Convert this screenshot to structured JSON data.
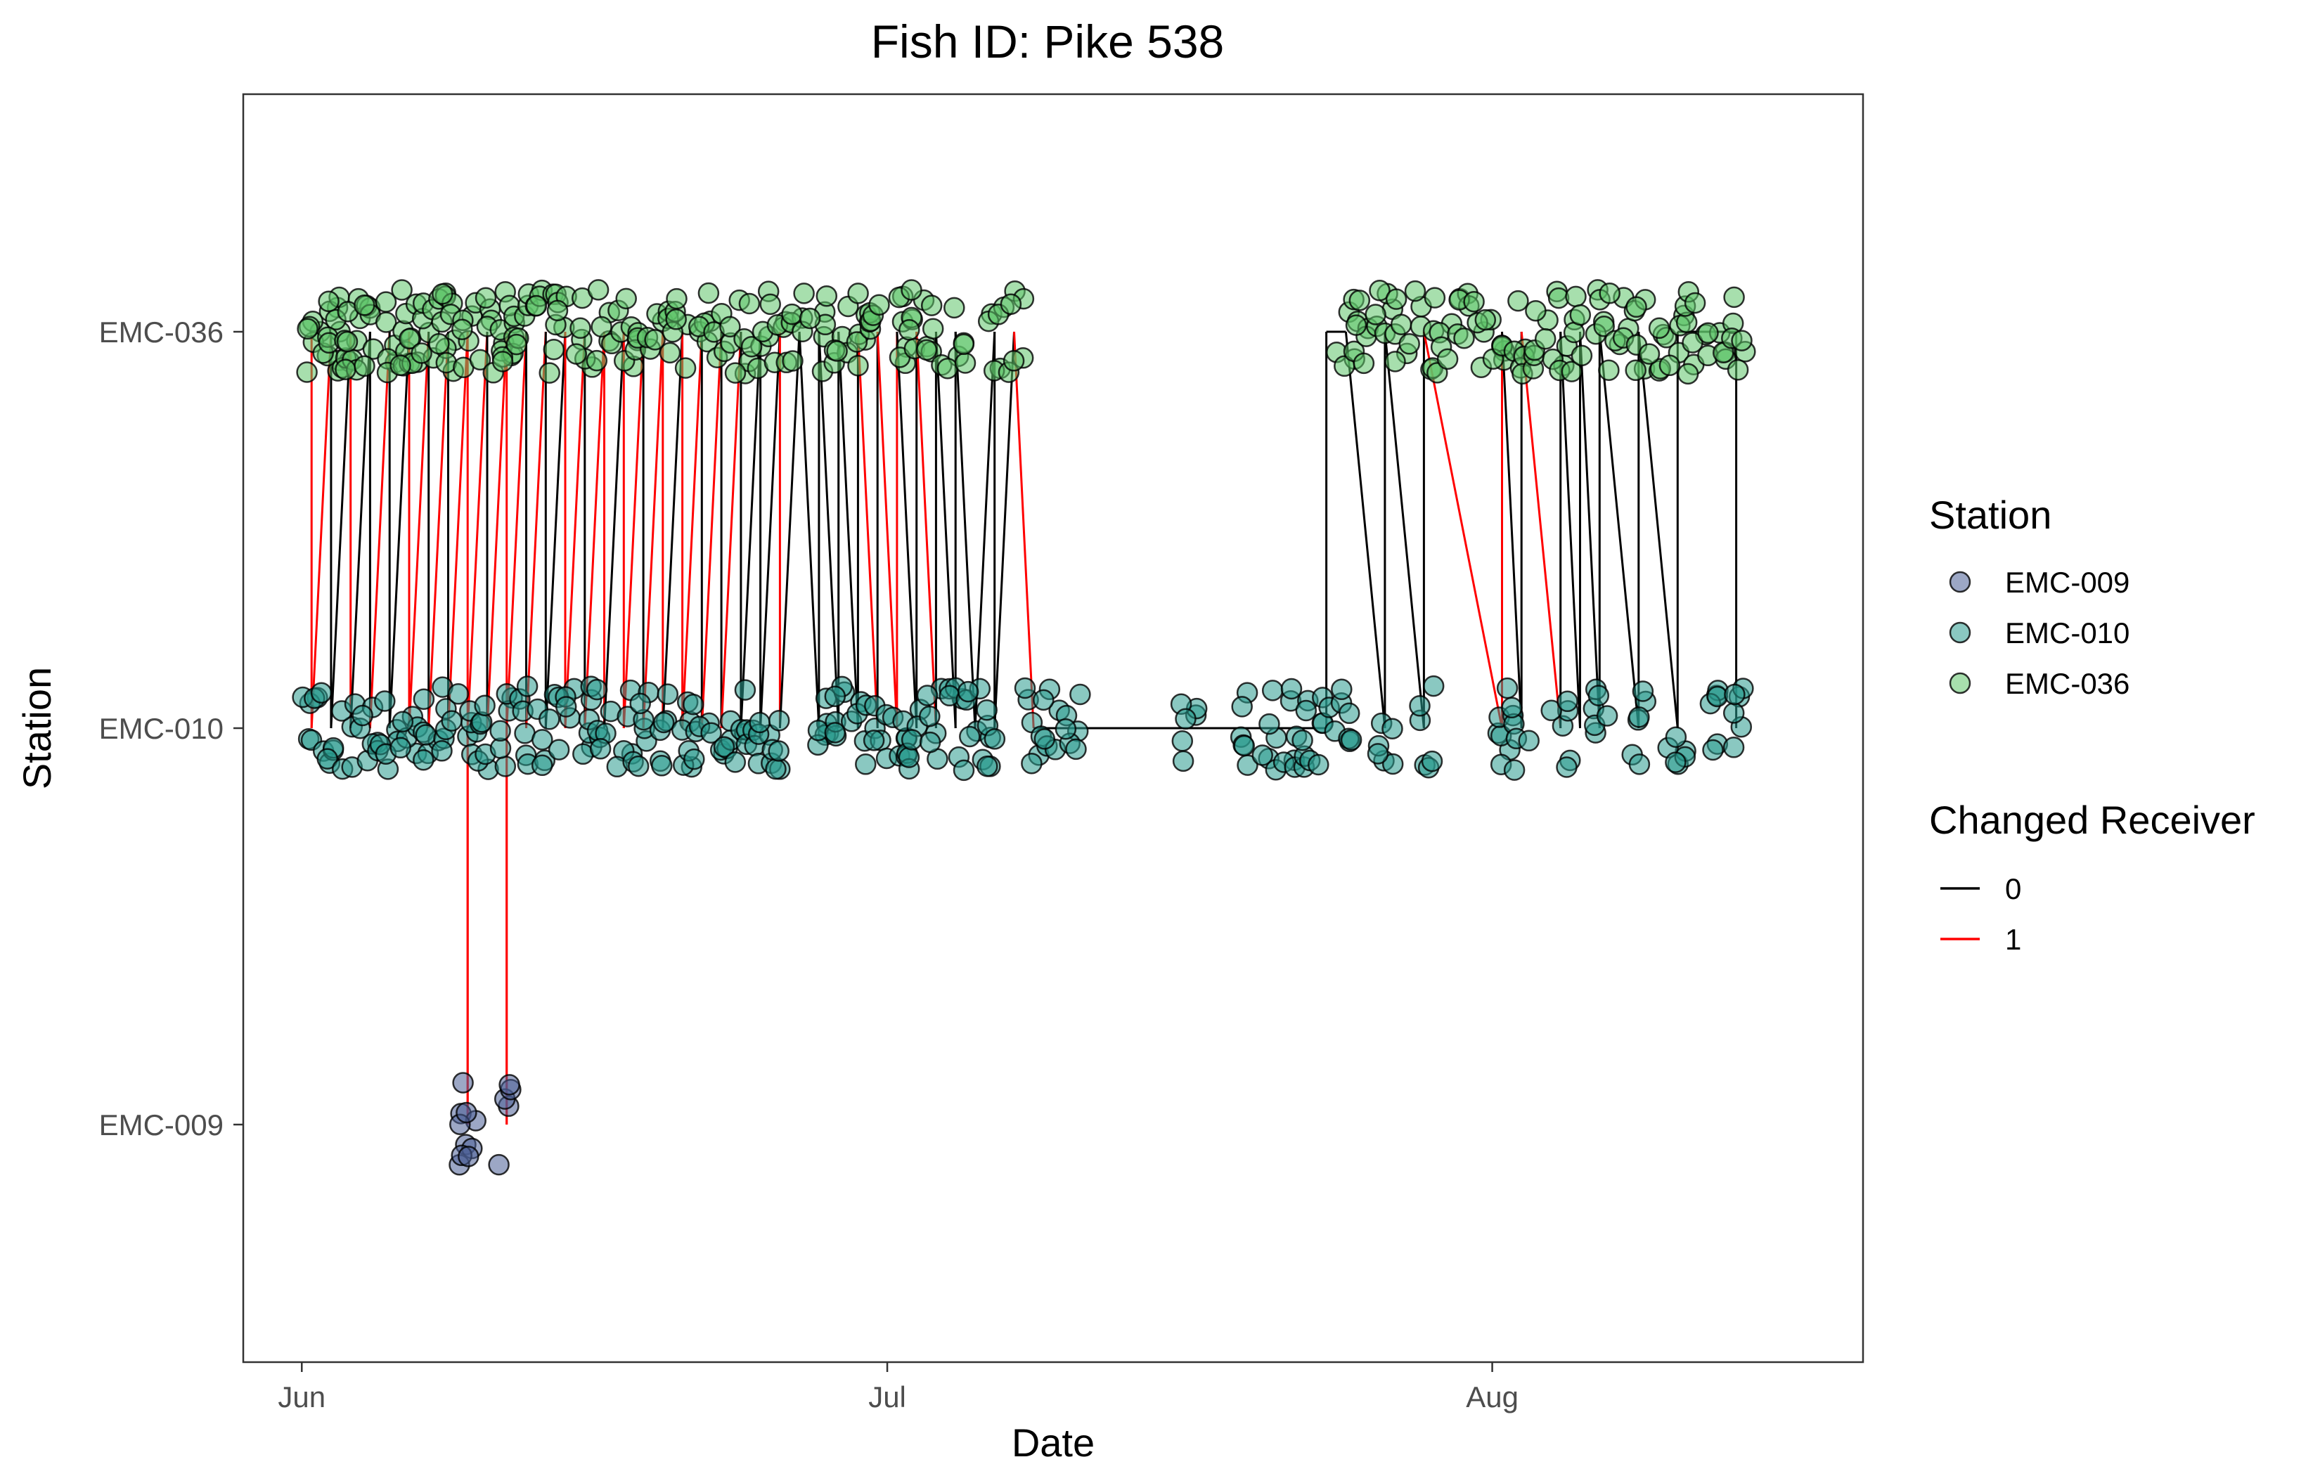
{
  "chart_data": {
    "type": "scatter",
    "title": "Fish ID: Pike 538",
    "xlabel": "Date",
    "ylabel": "Station",
    "x_ticks": [
      "Jun",
      "Jul",
      "Aug"
    ],
    "x_range": [
      "2023-05-29",
      "2023-08-20"
    ],
    "y_categories": [
      "EMC-009",
      "EMC-010",
      "EMC-036"
    ],
    "grid": false,
    "legend_position": "right",
    "series": [
      {
        "name": "EMC-009",
        "color": "#4b5f95",
        "station_index": 0
      },
      {
        "name": "EMC-010",
        "color": "#2a9a8e",
        "station_index": 1
      },
      {
        "name": "EMC-036",
        "color": "#5ec56a",
        "station_index": 2
      }
    ],
    "lines_legend": {
      "title": "Changed Receiver",
      "items": [
        {
          "label": "0",
          "color": "#000000"
        },
        {
          "label": "1",
          "color": "#ff0000"
        }
      ]
    },
    "detections": [
      [
        "2023-06-01",
        2
      ],
      [
        "2023-06-01",
        1
      ],
      [
        "2023-06-02",
        2
      ],
      [
        "2023-06-02",
        2
      ],
      [
        "2023-06-02",
        1
      ],
      [
        "2023-06-03",
        2
      ],
      [
        "2023-06-03",
        1
      ],
      [
        "2023-06-03",
        2
      ],
      [
        "2023-06-04",
        1
      ],
      [
        "2023-06-04",
        2
      ],
      [
        "2023-06-05",
        2
      ],
      [
        "2023-06-05",
        1
      ],
      [
        "2023-06-06",
        2
      ],
      [
        "2023-06-06",
        1
      ],
      [
        "2023-06-06",
        2
      ],
      [
        "2023-06-07",
        1
      ],
      [
        "2023-06-07",
        2
      ],
      [
        "2023-06-08",
        2
      ],
      [
        "2023-06-08",
        1
      ],
      [
        "2023-06-08",
        2
      ],
      [
        "2023-06-09",
        1
      ],
      [
        "2023-06-09",
        2
      ],
      [
        "2023-06-09",
        0
      ],
      [
        "2023-06-09",
        0
      ],
      [
        "2023-06-10",
        1
      ],
      [
        "2023-06-10",
        2
      ],
      [
        "2023-06-11",
        2
      ],
      [
        "2023-06-11",
        1
      ],
      [
        "2023-06-11",
        2
      ],
      [
        "2023-06-11",
        0
      ],
      [
        "2023-06-12",
        1
      ],
      [
        "2023-06-12",
        2
      ],
      [
        "2023-06-13",
        2
      ],
      [
        "2023-06-13",
        1
      ],
      [
        "2023-06-14",
        2
      ],
      [
        "2023-06-14",
        1
      ],
      [
        "2023-06-15",
        2
      ],
      [
        "2023-06-15",
        1
      ],
      [
        "2023-06-16",
        2
      ],
      [
        "2023-06-16",
        1
      ],
      [
        "2023-06-17",
        2
      ],
      [
        "2023-06-17",
        1
      ],
      [
        "2023-06-18",
        2
      ],
      [
        "2023-06-18",
        1
      ],
      [
        "2023-06-19",
        2
      ],
      [
        "2023-06-19",
        1
      ],
      [
        "2023-06-20",
        2
      ],
      [
        "2023-06-20",
        1
      ],
      [
        "2023-06-21",
        2
      ],
      [
        "2023-06-21",
        1
      ],
      [
        "2023-06-22",
        2
      ],
      [
        "2023-06-22",
        1
      ],
      [
        "2023-06-23",
        2
      ],
      [
        "2023-06-23",
        1
      ],
      [
        "2023-06-24",
        2
      ],
      [
        "2023-06-24",
        1
      ],
      [
        "2023-06-25",
        2
      ],
      [
        "2023-06-25",
        1
      ],
      [
        "2023-06-26",
        2
      ],
      [
        "2023-06-27",
        1
      ],
      [
        "2023-06-27",
        2
      ],
      [
        "2023-06-28",
        2
      ],
      [
        "2023-06-28",
        1
      ],
      [
        "2023-06-29",
        2
      ],
      [
        "2023-06-29",
        1
      ],
      [
        "2023-06-30",
        2
      ],
      [
        "2023-06-30",
        1
      ],
      [
        "2023-07-01",
        2
      ],
      [
        "2023-07-01",
        1
      ],
      [
        "2023-07-02",
        2
      ],
      [
        "2023-07-02",
        1
      ],
      [
        "2023-07-03",
        2
      ],
      [
        "2023-07-03",
        1
      ],
      [
        "2023-07-04",
        2
      ],
      [
        "2023-07-04",
        1
      ],
      [
        "2023-07-05",
        1
      ],
      [
        "2023-07-06",
        2
      ],
      [
        "2023-07-06",
        1
      ],
      [
        "2023-07-07",
        2
      ],
      [
        "2023-07-08",
        1
      ],
      [
        "2023-07-09",
        1
      ],
      [
        "2023-07-10",
        1
      ],
      [
        "2023-07-16",
        1
      ],
      [
        "2023-07-19",
        1
      ],
      [
        "2023-07-20",
        1
      ],
      [
        "2023-07-21",
        1
      ],
      [
        "2023-07-22",
        1
      ],
      [
        "2023-07-23",
        1
      ],
      [
        "2023-07-24",
        2
      ],
      [
        "2023-07-24",
        1
      ],
      [
        "2023-07-25",
        2
      ],
      [
        "2023-07-26",
        2
      ],
      [
        "2023-07-26",
        1
      ],
      [
        "2023-07-27",
        2
      ],
      [
        "2023-07-28",
        2
      ],
      [
        "2023-07-28",
        1
      ],
      [
        "2023-07-29",
        2
      ],
      [
        "2023-07-30",
        2
      ],
      [
        "2023-07-31",
        2
      ],
      [
        "2023-08-01",
        2
      ],
      [
        "2023-08-01",
        1
      ],
      [
        "2023-08-02",
        2
      ],
      [
        "2023-08-02",
        1
      ],
      [
        "2023-08-03",
        2
      ],
      [
        "2023-08-04",
        2
      ],
      [
        "2023-08-04",
        1
      ],
      [
        "2023-08-05",
        2
      ],
      [
        "2023-08-06",
        2
      ],
      [
        "2023-08-06",
        1
      ],
      [
        "2023-08-07",
        2
      ],
      [
        "2023-08-08",
        2
      ],
      [
        "2023-08-08",
        1
      ],
      [
        "2023-08-09",
        2
      ],
      [
        "2023-08-10",
        2
      ],
      [
        "2023-08-10",
        1
      ],
      [
        "2023-08-11",
        2
      ],
      [
        "2023-08-12",
        2
      ],
      [
        "2023-08-12",
        1
      ],
      [
        "2023-08-13",
        2
      ],
      [
        "2023-08-13",
        1
      ]
    ],
    "track": [
      [
        "2023-06-01",
        2,
        0
      ],
      [
        "2023-06-01",
        1,
        1
      ],
      [
        "2023-06-02",
        2,
        1
      ],
      [
        "2023-06-02",
        1,
        0
      ],
      [
        "2023-06-03",
        2,
        0
      ],
      [
        "2023-06-03",
        1,
        1
      ],
      [
        "2023-06-04",
        2,
        0
      ],
      [
        "2023-06-04",
        1,
        0
      ],
      [
        "2023-06-05",
        2,
        1
      ],
      [
        "2023-06-05",
        1,
        0
      ],
      [
        "2023-06-06",
        2,
        0
      ],
      [
        "2023-06-06",
        1,
        1
      ],
      [
        "2023-06-07",
        2,
        1
      ],
      [
        "2023-06-07",
        1,
        0
      ],
      [
        "2023-06-08",
        2,
        1
      ],
      [
        "2023-06-08",
        1,
        0
      ],
      [
        "2023-06-09",
        2,
        1
      ],
      [
        "2023-06-09",
        0,
        1
      ],
      [
        "2023-06-09",
        1,
        1
      ],
      [
        "2023-06-10",
        2,
        1
      ],
      [
        "2023-06-10",
        1,
        0
      ],
      [
        "2023-06-11",
        2,
        1
      ],
      [
        "2023-06-11",
        0,
        1
      ],
      [
        "2023-06-11",
        1,
        1
      ],
      [
        "2023-06-12",
        2,
        1
      ],
      [
        "2023-06-12",
        1,
        0
      ],
      [
        "2023-06-13",
        2,
        1
      ],
      [
        "2023-06-13",
        1,
        0
      ],
      [
        "2023-06-14",
        2,
        0
      ],
      [
        "2023-06-14",
        1,
        1
      ],
      [
        "2023-06-15",
        2,
        1
      ],
      [
        "2023-06-15",
        1,
        0
      ],
      [
        "2023-06-16",
        2,
        1
      ],
      [
        "2023-06-16",
        1,
        1
      ],
      [
        "2023-06-17",
        2,
        0
      ],
      [
        "2023-06-17",
        1,
        1
      ],
      [
        "2023-06-18",
        2,
        1
      ],
      [
        "2023-06-18",
        1,
        0
      ],
      [
        "2023-06-19",
        2,
        1
      ],
      [
        "2023-06-19",
        1,
        1
      ],
      [
        "2023-06-20",
        2,
        0
      ],
      [
        "2023-06-20",
        1,
        1
      ],
      [
        "2023-06-21",
        2,
        1
      ],
      [
        "2023-06-21",
        1,
        0
      ],
      [
        "2023-06-22",
        2,
        1
      ],
      [
        "2023-06-22",
        1,
        0
      ],
      [
        "2023-06-23",
        2,
        1
      ],
      [
        "2023-06-23",
        1,
        0
      ],
      [
        "2023-06-24",
        2,
        0
      ],
      [
        "2023-06-24",
        1,
        0
      ],
      [
        "2023-06-25",
        2,
        0
      ],
      [
        "2023-06-25",
        1,
        1
      ],
      [
        "2023-06-26",
        2,
        0
      ],
      [
        "2023-06-27",
        1,
        0
      ],
      [
        "2023-06-27",
        2,
        0
      ],
      [
        "2023-06-28",
        1,
        0
      ],
      [
        "2023-06-28",
        2,
        0
      ],
      [
        "2023-06-29",
        1,
        0
      ],
      [
        "2023-06-29",
        2,
        0
      ],
      [
        "2023-06-30",
        1,
        1
      ],
      [
        "2023-06-30",
        2,
        0
      ],
      [
        "2023-07-01",
        1,
        1
      ],
      [
        "2023-07-01",
        2,
        1
      ],
      [
        "2023-07-02",
        1,
        0
      ],
      [
        "2023-07-02",
        2,
        0
      ],
      [
        "2023-07-03",
        1,
        1
      ],
      [
        "2023-07-03",
        2,
        0
      ],
      [
        "2023-07-04",
        1,
        0
      ],
      [
        "2023-07-04",
        2,
        0
      ],
      [
        "2023-07-05",
        1,
        0
      ],
      [
        "2023-07-06",
        2,
        0
      ],
      [
        "2023-07-06",
        1,
        0
      ],
      [
        "2023-07-07",
        2,
        0
      ],
      [
        "2023-07-08",
        1,
        1
      ],
      [
        "2023-07-23",
        1,
        0
      ],
      [
        "2023-07-23",
        2,
        0
      ],
      [
        "2023-07-24",
        2,
        0
      ],
      [
        "2023-07-26",
        1,
        0
      ],
      [
        "2023-07-26",
        2,
        0
      ],
      [
        "2023-07-28",
        1,
        0
      ],
      [
        "2023-07-28",
        2,
        0
      ],
      [
        "2023-08-01",
        1,
        1
      ],
      [
        "2023-08-01",
        2,
        1
      ],
      [
        "2023-08-02",
        1,
        0
      ],
      [
        "2023-08-02",
        2,
        0
      ],
      [
        "2023-08-04",
        1,
        1
      ],
      [
        "2023-08-04",
        2,
        0
      ],
      [
        "2023-08-05",
        1,
        0
      ],
      [
        "2023-08-05",
        2,
        0
      ],
      [
        "2023-08-06",
        1,
        0
      ],
      [
        "2023-08-06",
        2,
        0
      ],
      [
        "2023-08-08",
        1,
        0
      ],
      [
        "2023-08-08",
        2,
        0
      ],
      [
        "2023-08-10",
        1,
        0
      ],
      [
        "2023-08-10",
        2,
        0
      ],
      [
        "2023-08-13",
        2,
        0
      ],
      [
        "2023-08-13",
        1,
        0
      ]
    ]
  }
}
